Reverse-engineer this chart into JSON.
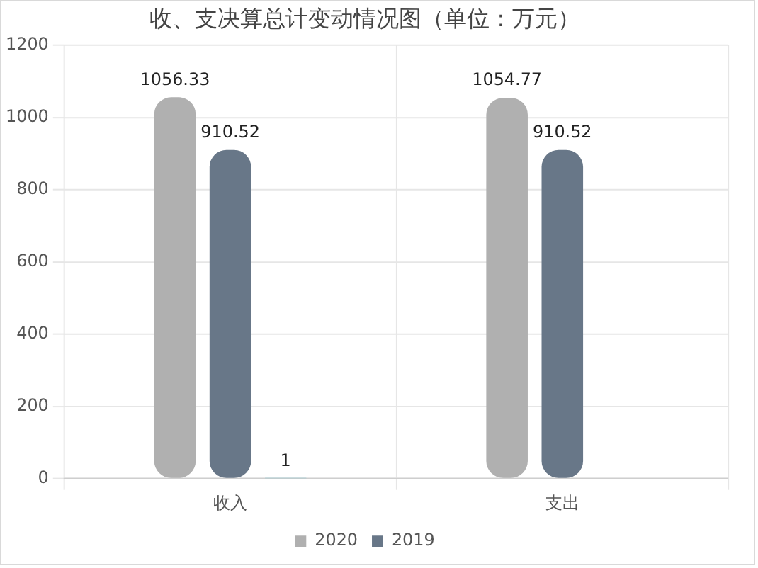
{
  "chart_data": {
    "type": "bar",
    "title": "收、支决算总计变动情况图（单位：万元）",
    "categories": [
      "收入",
      "支出"
    ],
    "series": [
      {
        "name": "2020",
        "color": "#b0b0b0",
        "values": [
          1056.33,
          1054.77
        ]
      },
      {
        "name": "2019",
        "color": "#687788",
        "values": [
          910.52,
          910.52
        ]
      },
      {
        "color": "#7fc4cf",
        "values": [
          1,
          null
        ]
      }
    ],
    "ylim": [
      0,
      1200
    ],
    "yticks": [
      0,
      200,
      400,
      600,
      800,
      1000,
      1200
    ],
    "grid": true,
    "legend": "bottom",
    "data_labels": true
  }
}
